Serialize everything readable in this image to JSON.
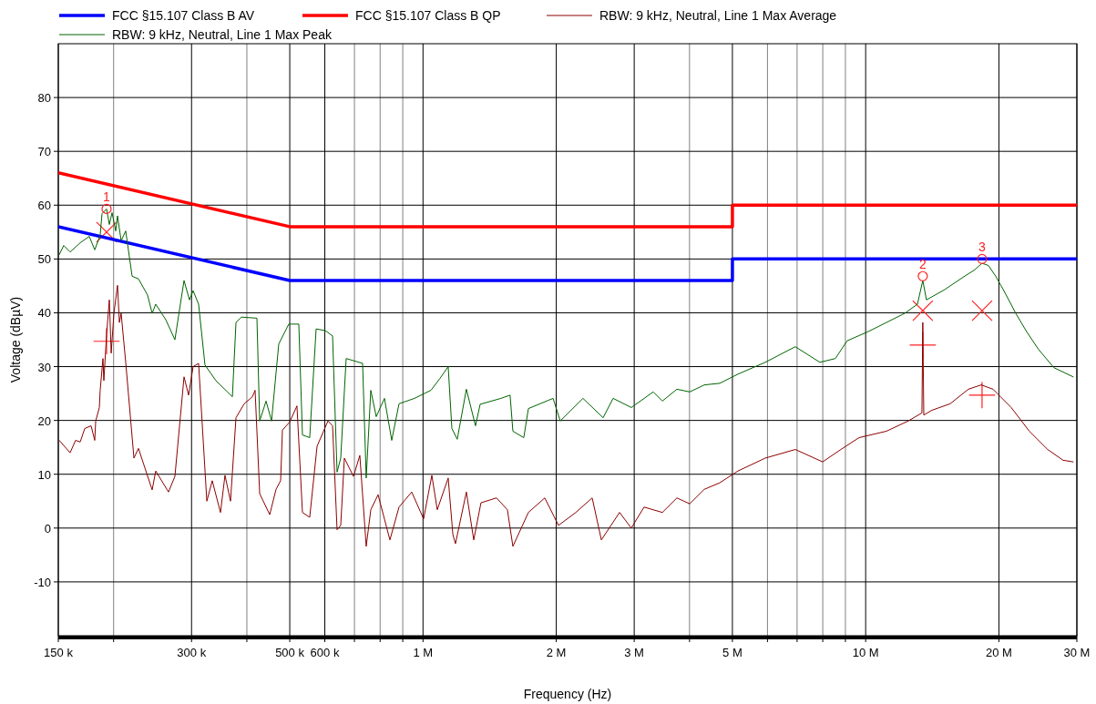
{
  "chart_data": {
    "type": "line",
    "xlabel": "Frequency (Hz)",
    "ylabel": "Voltage (dBµV)",
    "log": "x",
    "grid": true,
    "legend": "top",
    "line_style": "solid",
    "xlim": [
      150000,
      30000000
    ],
    "ylim": [
      -20,
      90
    ],
    "xticks": [
      {
        "value": 150000,
        "label": "150 k"
      },
      {
        "value": 200000,
        "label": null
      },
      {
        "value": 300000,
        "label": "300 k"
      },
      {
        "value": 400000,
        "label": null
      },
      {
        "value": 500000,
        "label": "500 k"
      },
      {
        "value": 600000,
        "label": "600 k"
      },
      {
        "value": 700000,
        "label": null
      },
      {
        "value": 800000,
        "label": null
      },
      {
        "value": 900000,
        "label": null
      },
      {
        "value": 1000000,
        "label": "1 M"
      },
      {
        "value": 2000000,
        "label": "2 M"
      },
      {
        "value": 3000000,
        "label": "3 M"
      },
      {
        "value": 4000000,
        "label": null
      },
      {
        "value": 5000000,
        "label": "5 M"
      },
      {
        "value": 6000000,
        "label": null
      },
      {
        "value": 7000000,
        "label": null
      },
      {
        "value": 8000000,
        "label": null
      },
      {
        "value": 9000000,
        "label": null
      },
      {
        "value": 10000000,
        "label": "10 M"
      },
      {
        "value": 20000000,
        "label": "20 M"
      },
      {
        "value": 30000000,
        "label": "30 M"
      }
    ],
    "yticks": [
      -10,
      0,
      10,
      20,
      30,
      40,
      50,
      60,
      70,
      80
    ],
    "annotations": [
      {
        "text": "1",
        "x": 192800,
        "y": 59.3
      },
      {
        "text": "2",
        "x": 13460000,
        "y": 46.8
      },
      {
        "text": "3",
        "x": 18320000,
        "y": 50
      }
    ],
    "series": [
      {
        "name": "FCC §15.107 Class B AV",
        "color": "#0000ff",
        "x": [
          150000,
          500000,
          5000000,
          5000000,
          30000000
        ],
        "values": [
          56,
          46,
          46,
          50,
          50
        ]
      },
      {
        "name": "FCC §15.107 Class B QP",
        "color": "#ff0000",
        "x": [
          150000,
          500000,
          5000000,
          5000000,
          30000000
        ],
        "values": [
          66,
          56,
          56,
          60,
          60
        ]
      },
      {
        "name": "RBW: 9 kHz, Neutral, Line 1 Max Average",
        "color": "#8b0000",
        "x": [
          150700,
          159500,
          164100,
          168100,
          172100,
          177900,
          181300,
          182200,
          185700,
          186500,
          189200,
          190100,
          192800,
          195600,
          197500,
          200300,
          204100,
          206100,
          208000,
          213000,
          222300,
          227600,
          244400,
          249000,
          266100,
          275100,
          288500,
          295400,
          302500,
          311200,
          324800,
          334100,
          348700,
          357000,
          367400,
          378000,
          394500,
          411700,
          417500,
          427600,
          450500,
          465600,
          476800,
          481300,
          499800,
          519100,
          534100,
          554700,
          576300,
          609900,
          624700,
          639500,
          651800,
          664200,
          696500,
          719900,
          744200,
          762100,
          791600,
          841800,
          882700,
          942900,
          1003000,
          1047000,
          1077000,
          1140000,
          1168000,
          1184000,
          1253000,
          1302000,
          1352000,
          1466000,
          1551000,
          1596000,
          1730000,
          1884000,
          2023000,
          2214000,
          2411000,
          2529000,
          2780000,
          2955000,
          3158000,
          3473000,
          3746000,
          4004000,
          4320000,
          4680000,
          5145000,
          5931000,
          6935000,
          7994000,
          8790000,
          9663000,
          11140000,
          12480000,
          13400000,
          13460000,
          13530000,
          14120000,
          15520000,
          17060000,
          18240000,
          19400000,
          21320000,
          23430000,
          25770000,
          27930000,
          29420000
        ],
        "values": [
          16.3,
          14,
          16.3,
          16,
          18.5,
          19,
          16.3,
          19.9,
          22.4,
          25.6,
          31.5,
          27.4,
          35.9,
          42.4,
          32.5,
          39.9,
          45.1,
          38.2,
          39.9,
          30.8,
          13,
          14.8,
          7.1,
          10.6,
          6.7,
          9.6,
          28.1,
          24.7,
          30,
          30.6,
          5,
          8.8,
          2.9,
          9.8,
          5,
          20.5,
          23.1,
          24.4,
          25.6,
          6.4,
          2.5,
          7.2,
          8.8,
          18.2,
          19.7,
          22.7,
          2.9,
          2,
          15.2,
          19.9,
          19,
          -0.3,
          0.5,
          13,
          9.6,
          13.5,
          -3.4,
          3.4,
          6.2,
          -2.2,
          3.9,
          6.7,
          1.7,
          9.8,
          3.4,
          9.3,
          -1.2,
          -2.9,
          6.7,
          -2.2,
          4.7,
          5.6,
          3.4,
          -3.4,
          2.9,
          5.6,
          0.5,
          2.9,
          5.6,
          -2.2,
          2.9,
          0,
          3.9,
          2.9,
          5.6,
          4.5,
          7.2,
          8.4,
          10.6,
          13,
          14.6,
          12.3,
          14.6,
          16.8,
          18,
          19.9,
          21.4,
          38.2,
          21,
          21.9,
          23.1,
          25.8,
          26.6,
          25.8,
          22.4,
          18,
          14.6,
          12.6,
          12.3
        ]
      },
      {
        "name": "RBW: 9 kHz, Neutral, Line 1 Max Peak",
        "color": "#006400",
        "x": [
          150700,
          154300,
          159500,
          168100,
          176200,
          181300,
          186500,
          188300,
          192800,
          195600,
          198400,
          202200,
          204100,
          208000,
          213000,
          220200,
          227600,
          238600,
          244400,
          249000,
          262400,
          275100,
          288500,
          296800,
          302500,
          311200,
          321700,
          340500,
          371000,
          378000,
          389000,
          421500,
          427600,
          442000,
          454800,
          472200,
          497500,
          524100,
          534100,
          554700,
          573500,
          601300,
          624700,
          639500,
          651800,
          670500,
          730300,
          744200,
          762100,
          784000,
          818300,
          849800,
          882700,
          956500,
          1042000,
          1092000,
          1140000,
          1162000,
          1195000,
          1253000,
          1314000,
          1346000,
          1500000,
          1573000,
          1596000,
          1689000,
          1730000,
          1967000,
          2042000,
          2298000,
          2552000,
          2688000,
          2955000,
          3312000,
          3473000,
          3746000,
          4004000,
          4320000,
          4680000,
          5145000,
          5931000,
          6935000,
          7881000,
          8541000,
          9083000,
          10130000,
          11140000,
          12250000,
          13090000,
          13460000,
          13720000,
          15080000,
          16590000,
          17640000,
          18320000,
          18930000,
          19670000,
          20620000,
          21830000,
          23100000,
          24570000,
          26630000,
          29420000
        ],
        "values": [
          50.8,
          52.5,
          51.3,
          53,
          54.2,
          51.7,
          54.4,
          58.4,
          59.3,
          56.4,
          58.6,
          55.2,
          58,
          53.4,
          55.2,
          46.8,
          46.3,
          43.3,
          39.9,
          41.6,
          38.7,
          35,
          46,
          42.4,
          44.1,
          41.6,
          30.3,
          27.4,
          24.4,
          38.2,
          39.2,
          39,
          19.9,
          23.6,
          19.9,
          34.2,
          37.9,
          37.9,
          17.3,
          16.8,
          37,
          36.7,
          35.7,
          10.4,
          13,
          31.5,
          30.6,
          9.3,
          25.6,
          20.7,
          24.1,
          16.3,
          23.1,
          24.1,
          25.6,
          27.8,
          30,
          18.5,
          16.5,
          25.8,
          19,
          23,
          24.1,
          24.7,
          18,
          16.8,
          22.2,
          24.1,
          19.9,
          24.1,
          20.5,
          24.1,
          22.4,
          25.3,
          23.6,
          25.8,
          25.3,
          26.6,
          26.9,
          28.6,
          30.8,
          33.7,
          30.8,
          31.5,
          34.8,
          36.5,
          38.2,
          39.9,
          41.6,
          46,
          42.4,
          44.3,
          46.6,
          48,
          49.2,
          48.8,
          46.8,
          43.8,
          39.9,
          36.5,
          33.2,
          29.8,
          28.1
        ]
      },
      {
        "type": "scatter",
        "marker": "cross",
        "color": "#ff2020",
        "x": [
          192800,
          13460000,
          18320000
        ],
        "values": [
          55,
          40.4,
          40.4
        ]
      },
      {
        "type": "scatter",
        "marker": "cross",
        "color": "#ff2020",
        "x": [
          192800,
          13460000,
          18320000
        ],
        "values": [
          34.7,
          34,
          24.7
        ]
      }
    ]
  }
}
